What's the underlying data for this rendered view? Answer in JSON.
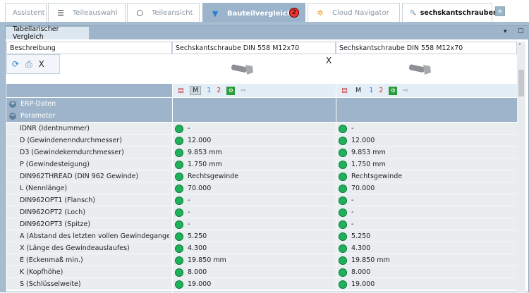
{
  "tabs": [
    {
      "label": "Assistent",
      "icon": "assistant"
    },
    {
      "label": "Teileauswahl",
      "icon": "parts-selection-icon"
    },
    {
      "label": "Teileansicht",
      "icon": "part-view-icon"
    },
    {
      "label": "Bauteilvergleich",
      "icon": "compare-icon",
      "active": true,
      "badge": "2"
    },
    {
      "label": "Cloud Navigator",
      "icon": "cloud-navigator-icon"
    },
    {
      "label": "sechskantschrauben",
      "icon": "search-abc-icon"
    }
  ],
  "add_tab": "+",
  "panel": {
    "title": "Tabellarischer Vergleich",
    "menu": "▾",
    "maximize": "☐"
  },
  "header": {
    "col0": "Beschreibung",
    "col1": "Sechskantschraube DIN 558 M12x70",
    "col2": "Sechskantschraube DIN 558 M12x70"
  },
  "close_compare": "X",
  "toolbar": {
    "close": "X"
  },
  "iconrow": {
    "m": "M",
    "one": "1",
    "two": "2"
  },
  "groups": {
    "erp": "ERP-Daten",
    "params": "Parameter"
  },
  "colors": {
    "accent": "#9db4ca",
    "match": "#1fb25a"
  },
  "rows": [
    {
      "label": "IDNR (Identnummer)",
      "a": "-",
      "b": "-"
    },
    {
      "label": "D (Gewindenenndurchmesser)",
      "a": "12.000",
      "b": "12.000"
    },
    {
      "label": "D3 (Gewindekerndurchmesser)",
      "a": "9.853 mm",
      "b": "9.853 mm"
    },
    {
      "label": "P (Gewindesteigung)",
      "a": "1.750 mm",
      "b": "1.750 mm"
    },
    {
      "label": "DIN962THREAD (DIN 962 Gewinde)",
      "a": "Rechtsgewinde",
      "b": "Rechtsgewinde"
    },
    {
      "label": "L (Nennlänge)",
      "a": "70.000",
      "b": "70.000"
    },
    {
      "label": "DIN962OPT1 (Flansch)",
      "a": "-",
      "b": "-"
    },
    {
      "label": "DIN962OPT2 (Loch)",
      "a": "-",
      "b": "-"
    },
    {
      "label": "DIN962OPT3 (Spitze)",
      "a": "-",
      "b": "-"
    },
    {
      "label": "A (Abstand des letzten vollen Gewindeganges vo...",
      "a": "5.250",
      "b": "5.250"
    },
    {
      "label": "X (Länge des Gewindeauslaufes)",
      "a": "4.300",
      "b": "4.300"
    },
    {
      "label": "E (Eckenmaß min.)",
      "a": "19.850 mm",
      "b": "19.850 mm"
    },
    {
      "label": "K (Kopfhöhe)",
      "a": "8.000",
      "b": "8.000"
    },
    {
      "label": "S (Schlüsselweite)",
      "a": "19.000",
      "b": "19.000"
    }
  ]
}
